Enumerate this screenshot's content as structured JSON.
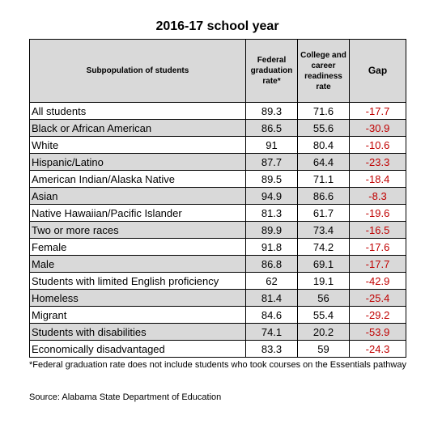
{
  "title": "2016-17 school year",
  "headers": {
    "subpop": "Subpopulation of students",
    "fed": "Federal graduation rate*",
    "ccr": "College and career readiness rate",
    "gap": "Gap"
  },
  "rows": [
    {
      "name": "All students",
      "fed": "89.3",
      "ccr": "71.6",
      "gap": "-17.7"
    },
    {
      "name": "Black or African American",
      "fed": "86.5",
      "ccr": "55.6",
      "gap": "-30.9"
    },
    {
      "name": "White",
      "fed": "91",
      "ccr": "80.4",
      "gap": "-10.6"
    },
    {
      "name": "Hispanic/Latino",
      "fed": "87.7",
      "ccr": "64.4",
      "gap": "-23.3"
    },
    {
      "name": "American Indian/Alaska Native",
      "fed": "89.5",
      "ccr": "71.1",
      "gap": "-18.4"
    },
    {
      "name": "Asian",
      "fed": "94.9",
      "ccr": "86.6",
      "gap": "-8.3"
    },
    {
      "name": "Native Hawaiian/Pacific Islander",
      "fed": "81.3",
      "ccr": "61.7",
      "gap": "-19.6"
    },
    {
      "name": "Two or more races",
      "fed": "89.9",
      "ccr": "73.4",
      "gap": "-16.5"
    },
    {
      "name": "Female",
      "fed": "91.8",
      "ccr": "74.2",
      "gap": "-17.6"
    },
    {
      "name": "Male",
      "fed": "86.8",
      "ccr": "69.1",
      "gap": "-17.7"
    },
    {
      "name": "Students with limited English proficiency",
      "fed": "62",
      "ccr": "19.1",
      "gap": "-42.9"
    },
    {
      "name": "Homeless",
      "fed": "81.4",
      "ccr": "56",
      "gap": "-25.4"
    },
    {
      "name": "Migrant",
      "fed": "84.6",
      "ccr": "55.4",
      "gap": "-29.2"
    },
    {
      "name": "Students with disabilities",
      "fed": "74.1",
      "ccr": "20.2",
      "gap": "-53.9"
    },
    {
      "name": "Economically disadvantaged",
      "fed": "83.3",
      "ccr": "59",
      "gap": "-24.3"
    }
  ],
  "footnote": "*Federal graduation rate does  not include students who took courses on the Essentials pathway",
  "source": "Source: Alabama State Department of Education",
  "colors": {
    "header_bg": "#d9d9d9",
    "gap_text": "#c00000"
  }
}
